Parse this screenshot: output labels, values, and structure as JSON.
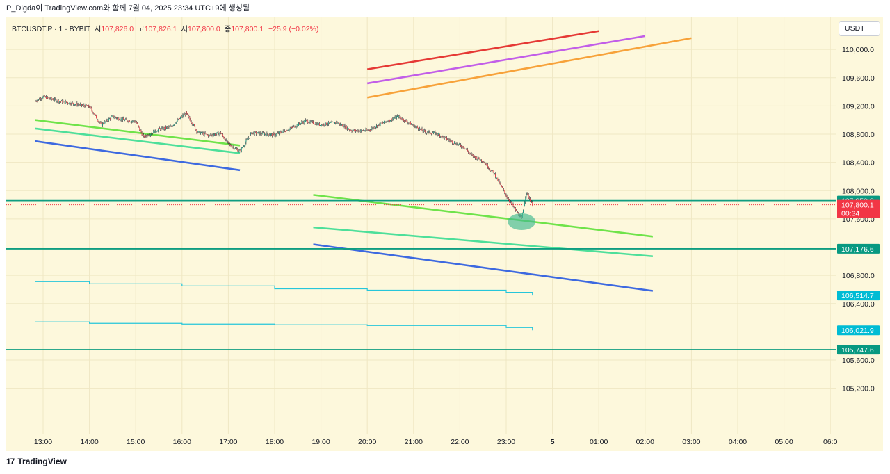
{
  "header": {
    "title": "P_Digda이 TradingView.com와 함께 7월 04, 2025 23:34 UTC+9에 생성됨"
  },
  "legend": {
    "symbol": "BTCUSDT.P · 1 · BYBIT",
    "open_label": "시",
    "open": "107,826.0",
    "high_label": "고",
    "high": "107,826.1",
    "low_label": "저",
    "low": "107,800.0",
    "close_label": "종",
    "close": "107,800.1",
    "change": "−25.9 (−0.02%)"
  },
  "currency_button": "USDT",
  "footer": {
    "logo": "TradingView",
    "logo_mark": "17"
  },
  "colors": {
    "background": "#fdf8dc",
    "grid": "#efe7c3",
    "up": "#089981",
    "down": "#f23645",
    "horizontal_level": "#0e9d81",
    "price_badge": "#f23645",
    "teal_label": "#089981",
    "cyan_label": "#00bcd4"
  },
  "chart_data": {
    "type": "line",
    "symbol": "BTCUSDT.P",
    "interval": "1",
    "exchange": "BYBIT",
    "x_tick_labels": [
      "13:00",
      "14:00",
      "15:00",
      "16:00",
      "17:00",
      "18:00",
      "19:00",
      "20:00",
      "21:00",
      "22:00",
      "23:00",
      "5",
      "01:00",
      "02:00",
      "03:00",
      "04:00",
      "05:00",
      "06:0"
    ],
    "y_tick_labels": [
      "110,000.0",
      "109,600.0",
      "109,200.0",
      "108,800.0",
      "108,400.0",
      "108,000.0",
      "107,600.0",
      "106,800.0",
      "106,400.0",
      "105,600.0",
      "105,200.0"
    ],
    "y_range": [
      105000,
      110100
    ],
    "grid": true,
    "price_series": [
      {
        "x": "12:50",
        "y": 109270
      },
      {
        "x": "13:00",
        "y": 109330
      },
      {
        "x": "13:20",
        "y": 109270
      },
      {
        "x": "13:40",
        "y": 109230
      },
      {
        "x": "14:00",
        "y": 109190
      },
      {
        "x": "14:15",
        "y": 108930
      },
      {
        "x": "14:30",
        "y": 109050
      },
      {
        "x": "14:45",
        "y": 109000
      },
      {
        "x": "15:00",
        "y": 108980
      },
      {
        "x": "15:10",
        "y": 108760
      },
      {
        "x": "15:30",
        "y": 108870
      },
      {
        "x": "15:45",
        "y": 108900
      },
      {
        "x": "16:05",
        "y": 109100
      },
      {
        "x": "16:20",
        "y": 108830
      },
      {
        "x": "16:35",
        "y": 108780
      },
      {
        "x": "16:50",
        "y": 108820
      },
      {
        "x": "17:00",
        "y": 108660
      },
      {
        "x": "17:15",
        "y": 108560
      },
      {
        "x": "17:30",
        "y": 108820
      },
      {
        "x": "18:00",
        "y": 108790
      },
      {
        "x": "18:20",
        "y": 108880
      },
      {
        "x": "18:40",
        "y": 108990
      },
      {
        "x": "19:00",
        "y": 108930
      },
      {
        "x": "19:20",
        "y": 108970
      },
      {
        "x": "19:40",
        "y": 108850
      },
      {
        "x": "20:00",
        "y": 108850
      },
      {
        "x": "20:20",
        "y": 108960
      },
      {
        "x": "20:40",
        "y": 109050
      },
      {
        "x": "21:00",
        "y": 108920
      },
      {
        "x": "21:15",
        "y": 108830
      },
      {
        "x": "21:30",
        "y": 108810
      },
      {
        "x": "21:50",
        "y": 108690
      },
      {
        "x": "22:05",
        "y": 108620
      },
      {
        "x": "22:15",
        "y": 108500
      },
      {
        "x": "22:30",
        "y": 108420
      },
      {
        "x": "22:45",
        "y": 108230
      },
      {
        "x": "23:00",
        "y": 107930
      },
      {
        "x": "23:10",
        "y": 107760
      },
      {
        "x": "23:20",
        "y": 107600
      },
      {
        "x": "23:26",
        "y": 107980
      },
      {
        "x": "23:34",
        "y": 107800
      }
    ],
    "price_labels": [
      {
        "value": "107,859.0",
        "color": "#089981"
      },
      {
        "value": "107,800.1",
        "color": "#f23645",
        "countdown": "00:34"
      },
      {
        "value": "107,176.6",
        "color": "#089981"
      },
      {
        "value": "106,514.7",
        "color": "#00bcd4"
      },
      {
        "value": "106,021.9",
        "color": "#00bcd4"
      },
      {
        "value": "105,747.6",
        "color": "#089981"
      }
    ],
    "horizontal_levels": [
      107859.0,
      107176.6,
      105747.6
    ],
    "stepped_lines": [
      {
        "color": "#26c6da",
        "points": [
          {
            "x": "12:50",
            "y": 106710
          },
          {
            "x": "14:00",
            "y": 106680
          },
          {
            "x": "16:00",
            "y": 106650
          },
          {
            "x": "18:00",
            "y": 106610
          },
          {
            "x": "20:00",
            "y": 106590
          },
          {
            "x": "23:00",
            "y": 106560
          },
          {
            "x": "23:34",
            "y": 106514.7
          }
        ]
      },
      {
        "color": "#26c6da",
        "points": [
          {
            "x": "12:50",
            "y": 106140
          },
          {
            "x": "14:00",
            "y": 106120
          },
          {
            "x": "16:00",
            "y": 106110
          },
          {
            "x": "18:00",
            "y": 106100
          },
          {
            "x": "20:00",
            "y": 106090
          },
          {
            "x": "23:00",
            "y": 106060
          },
          {
            "x": "23:34",
            "y": 106021.9
          }
        ]
      }
    ],
    "trendlines": [
      {
        "color": "#e53935",
        "from": {
          "x": "20:00",
          "y": 109720
        },
        "to": {
          "x": "01:00",
          "y": 110260
        }
      },
      {
        "color": "#c25ee8",
        "from": {
          "x": "20:00",
          "y": 109520
        },
        "to": {
          "x": "02:00",
          "y": 110190
        }
      },
      {
        "color": "#f7a23a",
        "from": {
          "x": "20:00",
          "y": 109320
        },
        "to": {
          "x": "03:00",
          "y": 110160
        }
      },
      {
        "color": "#6fe34a",
        "from": {
          "x": "12:50",
          "y": 109000
        },
        "to": {
          "x": "17:15",
          "y": 108640
        }
      },
      {
        "color": "#4ddf9a",
        "from": {
          "x": "12:50",
          "y": 108880
        },
        "to": {
          "x": "17:15",
          "y": 108530
        }
      },
      {
        "color": "#3d69e0",
        "from": {
          "x": "12:50",
          "y": 108700
        },
        "to": {
          "x": "17:15",
          "y": 108290
        }
      },
      {
        "color": "#6fe34a",
        "from": {
          "x": "18:50",
          "y": 107940
        },
        "to": {
          "x": "02:10",
          "y": 107350
        }
      },
      {
        "color": "#4ddf9a",
        "from": {
          "x": "18:50",
          "y": 107480
        },
        "to": {
          "x": "02:10",
          "y": 107070
        }
      },
      {
        "color": "#3d69e0",
        "from": {
          "x": "18:50",
          "y": 107240
        },
        "to": {
          "x": "02:10",
          "y": 106580
        }
      }
    ],
    "highlight_ellipse": {
      "x": "23:20",
      "y": 107560,
      "color": "#3fb98f"
    }
  }
}
